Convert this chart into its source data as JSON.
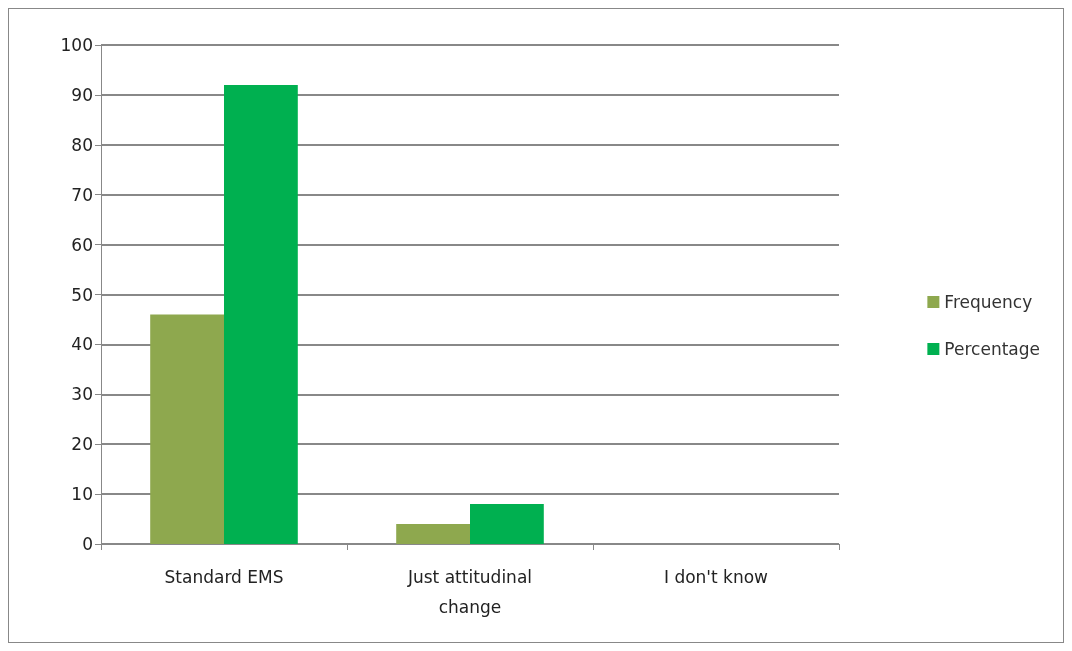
{
  "chart_data": {
    "type": "bar",
    "categories": [
      "Standard EMS",
      "Just attitudinal\nchange",
      "I don't know"
    ],
    "series": [
      {
        "name": "Frequency",
        "color": "#8ea84e",
        "values": [
          46,
          4,
          0
        ]
      },
      {
        "name": "Percentage",
        "color": "#00b050",
        "values": [
          92,
          8,
          0
        ]
      }
    ],
    "ylim": [
      0,
      100
    ],
    "yticks": [
      0,
      10,
      20,
      30,
      40,
      50,
      60,
      70,
      80,
      90,
      100
    ],
    "grid": "y",
    "legend": "right"
  }
}
